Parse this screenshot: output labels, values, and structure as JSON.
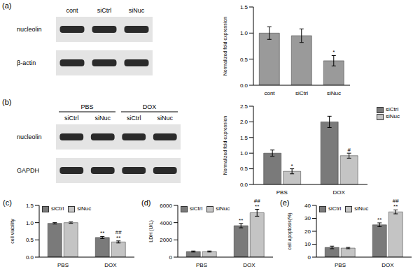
{
  "panel_labels": [
    "(a)",
    "(b)",
    "(c)",
    "(d)",
    "(e)"
  ],
  "blots": [
    {
      "lanes": [
        "cont",
        "siCtrl",
        "siNuc"
      ],
      "rows": [
        "nucleolin",
        "β-actin"
      ]
    },
    {
      "groups": [
        "PBS",
        "DOX"
      ],
      "lanes": [
        "siCtrl",
        "siNuc",
        "siCtrl",
        "siNuc"
      ],
      "rows": [
        "nucleolin",
        "GAPDH"
      ]
    }
  ],
  "chart_data": [
    {
      "type": "bar",
      "y_label": "Normalized fold expression",
      "categories": [
        "cont",
        "siCtrl",
        "siNuc"
      ],
      "values": [
        1.0,
        0.95,
        0.47
      ],
      "errors": [
        0.12,
        0.13,
        0.1
      ],
      "significance": [
        null,
        null,
        "*"
      ],
      "color": "#9a9a9a",
      "ylim": [
        0,
        1.5
      ],
      "yticks": [
        {
          "value": 0,
          "label": "0.0"
        },
        0.5,
        {
          "value": 1,
          "label": "1.0"
        },
        1.5
      ]
    },
    {
      "type": "bar",
      "y_label": "Normalized fold expression",
      "categories": [
        "PBS",
        "DOX"
      ],
      "series": [
        {
          "name": "siCtrl",
          "color": "#7a7a7a",
          "values": [
            1.0,
            2.0
          ],
          "errors": [
            0.1,
            0.18
          ],
          "significance": [
            null,
            null
          ]
        },
        {
          "name": "siNuc",
          "color": "#c4c4c4",
          "values": [
            0.42,
            0.92
          ],
          "errors": [
            0.08,
            0.08
          ],
          "significance": [
            "*",
            "#"
          ]
        }
      ],
      "ylim": [
        0,
        2.5
      ],
      "yticks": [
        {
          "value": 0,
          "label": "0.0"
        },
        0.5,
        {
          "value": 1,
          "label": "1.0"
        },
        1.5,
        {
          "value": 2,
          "label": "2.0"
        },
        2.5
      ],
      "legend": "right"
    },
    {
      "type": "bar",
      "y_label": "cell viability",
      "categories": [
        "PBS",
        "DOX"
      ],
      "series": [
        {
          "name": "siCtrl",
          "color": "#7a7a7a",
          "values": [
            0.98,
            0.57
          ],
          "errors": [
            0.02,
            0.03
          ],
          "significance": [
            null,
            "**"
          ]
        },
        {
          "name": "siNuc",
          "color": "#c4c4c4",
          "values": [
            1.0,
            0.44
          ],
          "errors": [
            0.02,
            0.03
          ],
          "significance": [
            null,
            [
              "##",
              "**"
            ]
          ]
        }
      ],
      "ylim": [
        0,
        1.5
      ],
      "yticks": [
        {
          "value": 0,
          "label": "0.0"
        },
        0.5,
        {
          "value": 1,
          "label": "1.0"
        },
        1.5
      ],
      "legend": "upper left"
    },
    {
      "type": "bar",
      "y_label": "LDH (U/L)",
      "categories": [
        "PBS",
        "DOX"
      ],
      "series": [
        {
          "name": "siCtrl",
          "color": "#7a7a7a",
          "values": [
            650,
            3650
          ],
          "errors": [
            60,
            250
          ],
          "significance": [
            null,
            "**"
          ]
        },
        {
          "name": "siNuc",
          "color": "#c4c4c4",
          "values": [
            650,
            5150
          ],
          "errors": [
            60,
            400
          ],
          "significance": [
            null,
            [
              "##",
              "**"
            ]
          ]
        }
      ],
      "ylim": [
        0,
        6000
      ],
      "yticks": [
        0,
        2000,
        4000,
        6000
      ],
      "legend": "upper left"
    },
    {
      "type": "bar",
      "y_label": "cell apoptosis(%)",
      "categories": [
        "PBS",
        "DOX"
      ],
      "series": [
        {
          "name": "siCtrl",
          "color": "#7a7a7a",
          "values": [
            7.5,
            25
          ],
          "errors": [
            1,
            1.5
          ],
          "significance": [
            null,
            "**"
          ]
        },
        {
          "name": "siNuc",
          "color": "#c4c4c4",
          "values": [
            7,
            35
          ],
          "errors": [
            0.5,
            1.5
          ],
          "significance": [
            null,
            [
              "##",
              "**"
            ]
          ]
        }
      ],
      "ylim": [
        0,
        40
      ],
      "yticks": [
        0,
        10,
        20,
        30,
        40
      ],
      "legend": "upper left"
    }
  ]
}
